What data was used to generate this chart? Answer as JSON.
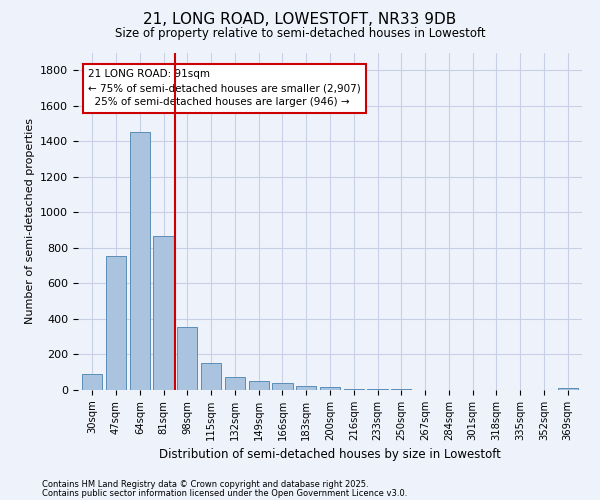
{
  "title1": "21, LONG ROAD, LOWESTOFT, NR33 9DB",
  "title2": "Size of property relative to semi-detached houses in Lowestoft",
  "xlabel": "Distribution of semi-detached houses by size in Lowestoft",
  "ylabel": "Number of semi-detached properties",
  "categories": [
    "30sqm",
    "47sqm",
    "64sqm",
    "81sqm",
    "98sqm",
    "115sqm",
    "132sqm",
    "149sqm",
    "166sqm",
    "183sqm",
    "200sqm",
    "216sqm",
    "233sqm",
    "250sqm",
    "267sqm",
    "284sqm",
    "301sqm",
    "318sqm",
    "335sqm",
    "352sqm",
    "369sqm"
  ],
  "values": [
    90,
    755,
    1455,
    865,
    355,
    150,
    75,
    52,
    38,
    25,
    15,
    8,
    5,
    3,
    2,
    2,
    2,
    1,
    1,
    1,
    10
  ],
  "bar_color": "#aac4e0",
  "bar_edgecolor": "#5b8db8",
  "red_line_x": 3.5,
  "annotation_line1": "21 LONG ROAD: 91sqm",
  "annotation_line2": "← 75% of semi-detached houses are smaller (2,907)",
  "annotation_line3": "  25% of semi-detached houses are larger (946) →",
  "annotation_box_color": "#ffffff",
  "annotation_box_edge": "#cc0000",
  "red_line_color": "#cc0000",
  "footer1": "Contains HM Land Registry data © Crown copyright and database right 2025.",
  "footer2": "Contains public sector information licensed under the Open Government Licence v3.0.",
  "ylim": [
    0,
    1900
  ],
  "yticks": [
    0,
    200,
    400,
    600,
    800,
    1000,
    1200,
    1400,
    1600,
    1800
  ],
  "background_color": "#eef2fb"
}
